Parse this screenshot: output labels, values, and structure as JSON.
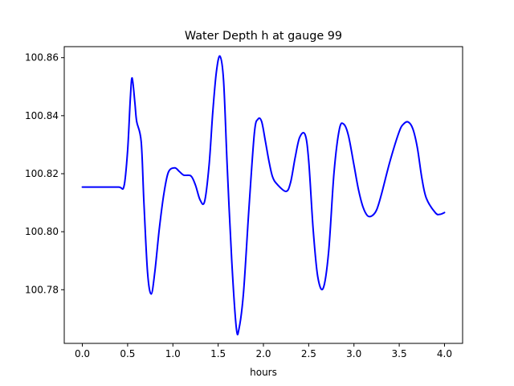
{
  "chart_data": {
    "type": "line",
    "title": "Water Depth h at gauge 99",
    "xlabel": "hours",
    "ylabel": "",
    "xlim": [
      -0.2,
      4.2
    ],
    "ylim": [
      100.7615,
      100.8638
    ],
    "xticks": [
      0.0,
      0.5,
      1.0,
      1.5,
      2.0,
      2.5,
      3.0,
      3.5,
      4.0
    ],
    "xtick_labels": [
      "0.0",
      "0.5",
      "1.0",
      "1.5",
      "2.0",
      "2.5",
      "3.0",
      "3.5",
      "4.0"
    ],
    "yticks": [
      100.78,
      100.8,
      100.82,
      100.84,
      100.86
    ],
    "ytick_labels": [
      "100.78",
      "100.80",
      "100.82",
      "100.84",
      "100.86"
    ],
    "grid": false,
    "series": [
      {
        "color": "#0000ff",
        "x": [
          0.0,
          0.2,
          0.4,
          0.46,
          0.5,
          0.53,
          0.55,
          0.58,
          0.6,
          0.65,
          0.68,
          0.72,
          0.76,
          0.8,
          0.85,
          0.9,
          0.95,
          1.02,
          1.07,
          1.12,
          1.2,
          1.25,
          1.3,
          1.35,
          1.4,
          1.44,
          1.48,
          1.52,
          1.56,
          1.6,
          1.65,
          1.7,
          1.73,
          1.78,
          1.84,
          1.9,
          1.94,
          1.98,
          2.02,
          2.06,
          2.1,
          2.15,
          2.25,
          2.3,
          2.35,
          2.4,
          2.46,
          2.5,
          2.55,
          2.6,
          2.66,
          2.72,
          2.78,
          2.84,
          2.89,
          2.94,
          3.0,
          3.05,
          3.1,
          3.15,
          3.2,
          3.25,
          3.3,
          3.4,
          3.5,
          3.55,
          3.6,
          3.65,
          3.7,
          3.75,
          3.8,
          3.9,
          3.95,
          4.0
        ],
        "y": [
          100.8154,
          100.8154,
          100.8154,
          100.8157,
          100.828,
          100.846,
          100.853,
          100.8445,
          100.838,
          100.831,
          100.81,
          100.786,
          100.7785,
          100.786,
          100.801,
          100.813,
          100.8205,
          100.822,
          100.8208,
          100.8195,
          100.8192,
          100.816,
          100.811,
          100.8104,
          100.823,
          100.841,
          100.855,
          100.8605,
          100.852,
          100.8225,
          100.79,
          100.767,
          100.7665,
          100.779,
          100.808,
          100.834,
          100.8388,
          100.838,
          100.8315,
          100.8245,
          100.819,
          100.8164,
          100.8139,
          100.817,
          100.8255,
          100.8325,
          100.8335,
          100.8245,
          100.8005,
          100.7845,
          100.7805,
          100.793,
          100.8205,
          100.8355,
          100.837,
          100.833,
          100.823,
          100.8145,
          100.8085,
          100.8055,
          100.8055,
          100.8075,
          100.8125,
          100.8245,
          100.8345,
          100.8372,
          100.8378,
          100.8355,
          100.829,
          100.8185,
          100.8115,
          100.8065,
          100.806,
          100.8066
        ]
      }
    ]
  }
}
